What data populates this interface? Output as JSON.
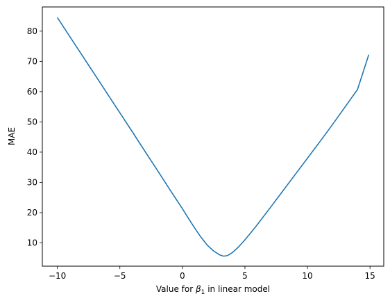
{
  "chart_data": {
    "type": "line",
    "title": "",
    "xlabel_parts": {
      "pre": "Value for ",
      "symbol": "β",
      "subscript": "1",
      "post": " in linear model"
    },
    "ylabel": "MAE",
    "xlim": [
      -11.2,
      16.1
    ],
    "ylim": [
      2.3,
      88.0
    ],
    "xticks": [
      -10,
      -5,
      0,
      5,
      10,
      15
    ],
    "xtick_labels": [
      "−10",
      "−5",
      "0",
      "5",
      "10",
      "15"
    ],
    "yticks": [
      10,
      20,
      30,
      40,
      50,
      60,
      70,
      80
    ],
    "ytick_labels": [
      "10",
      "20",
      "30",
      "40",
      "50",
      "60",
      "70",
      "80"
    ],
    "grid": false,
    "series": [
      {
        "color": "#1f77b4",
        "x": [
          -10,
          -9,
          -8,
          -7,
          -6,
          -5,
          -4,
          -3,
          -2,
          -1,
          0,
          0.5,
          1,
          1.5,
          2,
          2.5,
          3,
          3.3,
          3.6,
          4,
          4.5,
          5,
          5.5,
          6,
          7,
          8,
          9,
          10,
          11,
          12,
          13,
          14,
          14.9
        ],
        "y": [
          84.5,
          78.2,
          71.9,
          65.6,
          59.3,
          53.0,
          46.7,
          40.3,
          34.0,
          27.6,
          21.3,
          18.0,
          14.8,
          11.8,
          9.2,
          7.3,
          6.0,
          5.6,
          5.8,
          6.8,
          8.7,
          11.0,
          13.5,
          16.1,
          21.5,
          27.0,
          32.5,
          38.0,
          43.5,
          49.1,
          54.9,
          60.7,
          72.2
        ]
      }
    ]
  }
}
